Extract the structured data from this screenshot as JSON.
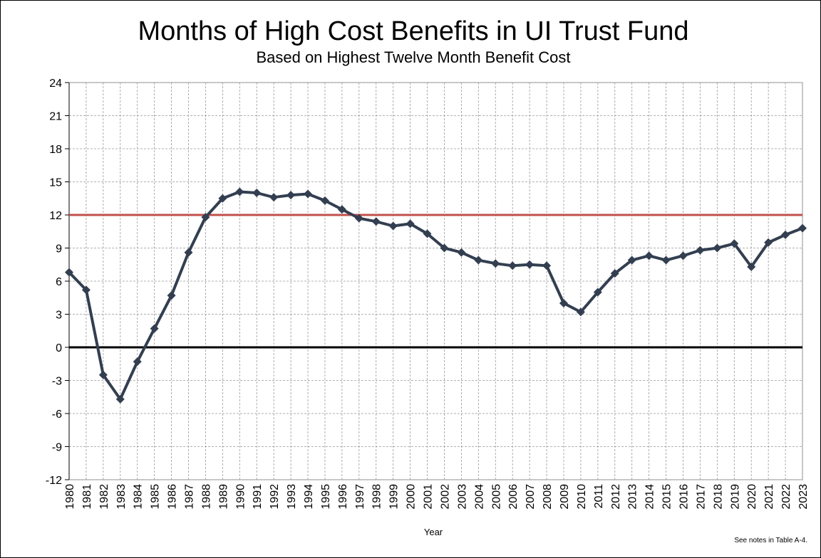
{
  "chart_data": {
    "type": "line",
    "title": "Months of High Cost Benefits in UI Trust Fund",
    "subtitle": "Based on Highest Twelve Month Benefit Cost",
    "x_label": "Year",
    "note": "See notes  in Table A-4.",
    "categories": [
      "1980",
      "1981",
      "1982",
      "1983",
      "1984",
      "1985",
      "1986",
      "1987",
      "1988",
      "1989",
      "1990",
      "1991",
      "1992",
      "1993",
      "1994",
      "1995",
      "1996",
      "1997",
      "1998",
      "1999",
      "2000",
      "2001",
      "2002",
      "2003",
      "2004",
      "2005",
      "2006",
      "2007",
      "2008",
      "2009",
      "2010",
      "2011",
      "2012",
      "2013",
      "2014",
      "2015",
      "2016",
      "2017",
      "2018",
      "2019",
      "2020",
      "2021",
      "2022",
      "2023"
    ],
    "values": [
      6.8,
      5.2,
      -2.5,
      -4.7,
      -1.3,
      1.7,
      4.7,
      8.6,
      11.8,
      13.5,
      14.1,
      14.0,
      13.6,
      13.8,
      13.9,
      13.3,
      12.5,
      11.7,
      11.4,
      11.0,
      11.2,
      10.3,
      9.0,
      8.6,
      7.9,
      7.6,
      7.4,
      7.5,
      7.4,
      4.0,
      3.2,
      5.0,
      6.7,
      7.9,
      8.3,
      7.9,
      8.3,
      8.8,
      9.0,
      9.4,
      7.3,
      9.5,
      10.2,
      10.8
    ],
    "color": "#333f50",
    "ylim": [
      -12,
      24
    ],
    "yticks": [
      -12,
      -9,
      -6,
      -3,
      0,
      3,
      6,
      9,
      12,
      15,
      18,
      21,
      24
    ],
    "grid": true,
    "reference_lines": [
      {
        "value": 12,
        "color": "#c0504d"
      },
      {
        "value": 0,
        "color": "#000000"
      }
    ]
  }
}
